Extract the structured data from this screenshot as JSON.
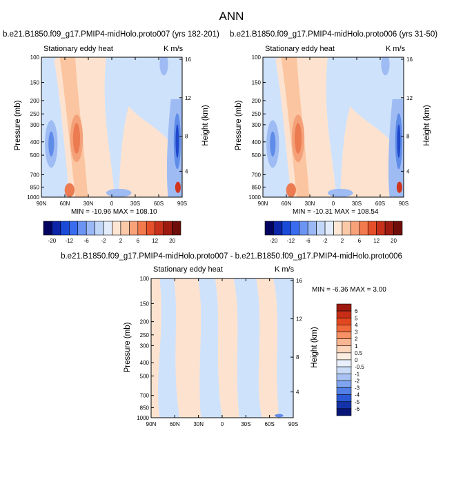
{
  "figure": {
    "title": "ANN"
  },
  "chart_data": [
    {
      "type": "heatmap",
      "title": "b.e21.B1850.f09_g17.PMIP4-midHolo.proto007 (yrs 182-201)",
      "subtitle_left": "Stationary eddy heat",
      "subtitle_right": "K m/s",
      "xlabel": "",
      "ylabel": "Pressure (mb)",
      "ylabel_right": "Height (km)",
      "x_ticks": [
        "90N",
        "60N",
        "30N",
        "0",
        "30S",
        "60S",
        "90S"
      ],
      "y_ticks": [
        "100",
        "150",
        "200",
        "250",
        "300",
        "400",
        "500",
        "700",
        "850",
        "1000"
      ],
      "y_right_ticks": [
        "16",
        "12",
        "8",
        "4"
      ],
      "stats": "MIN = -10.96   MAX = 108.10"
    },
    {
      "type": "heatmap",
      "title": "b.e21.B1850.f09_g17.PMIP4-midHolo.proto006 (yrs 31-50)",
      "subtitle_left": "Stationary eddy heat",
      "subtitle_right": "K m/s",
      "xlabel": "",
      "ylabel": "Pressure (mb)",
      "ylabel_right": "Height (km)",
      "x_ticks": [
        "90N",
        "60N",
        "30N",
        "0",
        "30S",
        "60S",
        "90S"
      ],
      "y_ticks": [
        "100",
        "150",
        "200",
        "250",
        "300",
        "400",
        "500",
        "700",
        "850",
        "1000"
      ],
      "y_right_ticks": [
        "16",
        "12",
        "8",
        "4"
      ],
      "stats": "MIN = -10.31   MAX = 108.54"
    },
    {
      "type": "heatmap",
      "title": "b.e21.B1850.f09_g17.PMIP4-midHolo.proto007 - b.e21.B1850.f09_g17.PMIP4-midHolo.proto006",
      "subtitle_left": "Stationary eddy heat",
      "subtitle_right": "K m/s",
      "xlabel": "",
      "ylabel": "Pressure (mb)",
      "ylabel_right": "Height (km)",
      "x_ticks": [
        "90N",
        "60N",
        "30N",
        "0",
        "30S",
        "60S",
        "90S"
      ],
      "y_ticks": [
        "100",
        "150",
        "200",
        "250",
        "300",
        "400",
        "500",
        "700",
        "850",
        "1000"
      ],
      "y_right_ticks": [
        "16",
        "12",
        "8",
        "4"
      ],
      "stats": "MIN =  -6.36  MAX =    3.00"
    }
  ],
  "colorbar_main": {
    "labels": [
      "-20",
      "-12",
      "-6",
      "-2",
      "2",
      "6",
      "12",
      "20"
    ],
    "colors": [
      "#03045f",
      "#0d25a8",
      "#1a4bd8",
      "#3a6cf0",
      "#6c95f3",
      "#9ab8f5",
      "#c2d6f8",
      "#e2ecfb",
      "#fde6d4",
      "#fbc9a8",
      "#f8a27a",
      "#f37a4d",
      "#e54f2a",
      "#c7311b",
      "#9e1a10",
      "#6e0d09"
    ]
  },
  "colorbar_diff": {
    "labels": [
      "6",
      "5",
      "4",
      "3",
      "2",
      "1",
      "0.5",
      "0",
      "-0.5",
      "-1",
      "-2",
      "-3",
      "-4",
      "-5",
      "-6"
    ],
    "colors": [
      "#9e1a10",
      "#c72d16",
      "#e3471f",
      "#f26a3b",
      "#f79266",
      "#fab692",
      "#fcd5bb",
      "#fdeee2",
      "#e8f0fb",
      "#c9dbf7",
      "#a7c2f3",
      "#7ea4ef",
      "#5280e8",
      "#2a58d6",
      "#1433a8",
      "#061577"
    ]
  },
  "palette": {
    "background_blue": "#cfe2fb",
    "light_pink": "#fde3cf",
    "pink": "#fbc5a1",
    "salmon": "#f4a17a",
    "orange": "#ec7b52",
    "red": "#d0361d",
    "mid_blue": "#9ebcf3",
    "blue": "#5f8ce8",
    "deep_blue": "#1f48cc"
  }
}
